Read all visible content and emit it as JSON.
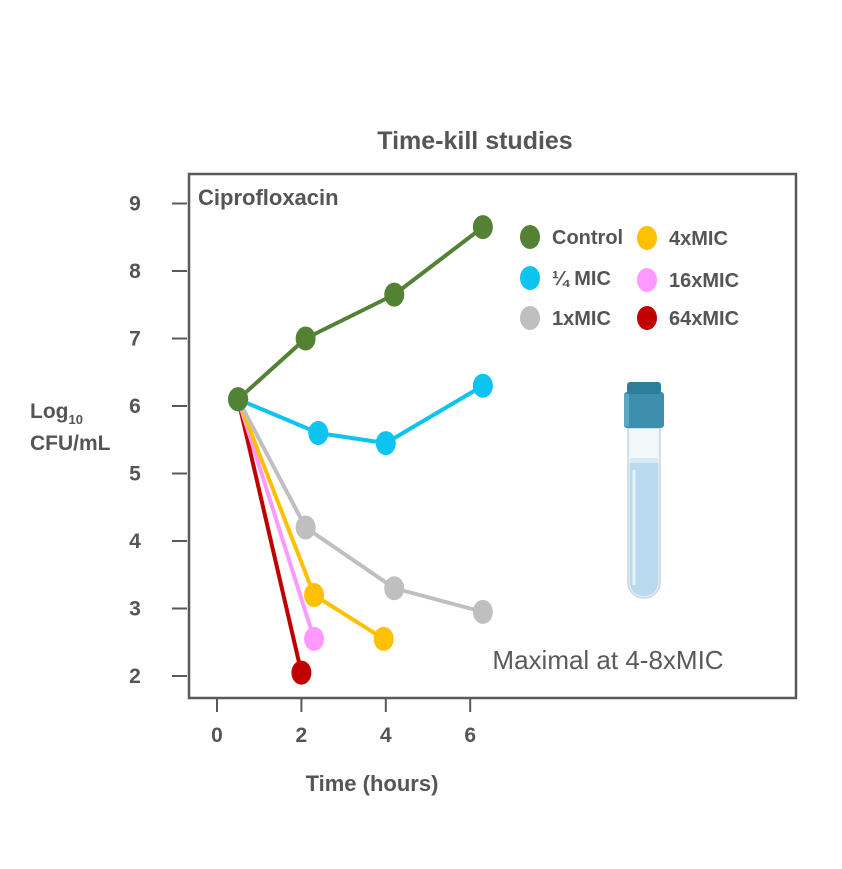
{
  "chart_data": {
    "type": "line",
    "title": "Time-kill studies",
    "panel_label": "Ciprofloxacin",
    "xlabel": "Time (hours)",
    "ylabel_main": "Log",
    "ylabel_sub": "10",
    "ylabel_line2": "CFU/mL",
    "x_ticks": [
      "0",
      "2",
      "4",
      "6"
    ],
    "y_ticks": [
      "2",
      "3",
      "4",
      "5",
      "6",
      "7",
      "8",
      "9"
    ],
    "xlim": [
      0,
      6.5
    ],
    "ylim": [
      1.6,
      9.4
    ],
    "grid": false,
    "legend_position": "top-right",
    "annotation": "Maximal at 4-8xMIC",
    "series": [
      {
        "name": "Control",
        "color": "#548235",
        "x": [
          0.5,
          2.1,
          4.2,
          6.3
        ],
        "y": [
          6.1,
          7.0,
          7.65,
          8.65
        ]
      },
      {
        "name": "¼ MIC",
        "color": "#0DC3F0",
        "x": [
          0.5,
          2.4,
          4.0,
          6.3
        ],
        "y": [
          6.1,
          5.6,
          5.45,
          6.3
        ]
      },
      {
        "name": "1xMIC",
        "color": "#BFBFBF",
        "x": [
          0.5,
          2.1,
          4.2,
          6.3
        ],
        "y": [
          6.1,
          4.2,
          3.3,
          2.95
        ]
      },
      {
        "name": "4xMIC",
        "color": "#FFC000",
        "x": [
          0.5,
          2.3,
          3.95
        ],
        "y": [
          6.1,
          3.2,
          2.55
        ]
      },
      {
        "name": "16xMIC",
        "color": "#FF99FF",
        "x": [
          0.5,
          2.3
        ],
        "y": [
          6.1,
          2.55
        ]
      },
      {
        "name": "64xMIC",
        "color": "#C00000",
        "x": [
          0.5,
          2.0
        ],
        "y": [
          6.1,
          2.05
        ]
      }
    ]
  }
}
